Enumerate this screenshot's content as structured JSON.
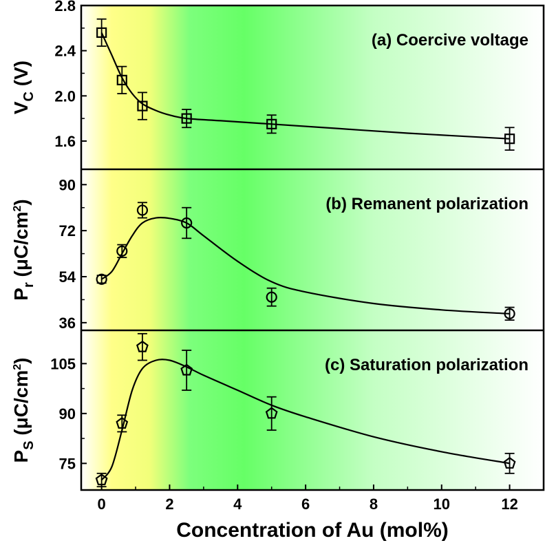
{
  "chart_data": {
    "type": "scatter",
    "x_axis": {
      "label": "Concentration of Au (mol%)",
      "range": [
        -0.6,
        13
      ],
      "ticks": [
        0,
        2,
        4,
        6,
        8,
        10,
        12
      ],
      "tick_labels": [
        "0",
        "2",
        "4",
        "6",
        "8",
        "10",
        "12"
      ]
    },
    "background_gradient": {
      "direction": "horizontal",
      "stops": [
        {
          "x": -0.6,
          "color": "#ffffff"
        },
        {
          "x": 0.3,
          "color": "#ffff88"
        },
        {
          "x": 1.4,
          "color": "#f2ff7a"
        },
        {
          "x": 2.6,
          "color": "#7cff7c"
        },
        {
          "x": 4.2,
          "color": "#66ff66"
        },
        {
          "x": 8.0,
          "color": "#c4ffc4"
        },
        {
          "x": 13.0,
          "color": "#ffffff"
        }
      ]
    },
    "panels": [
      {
        "id": "a",
        "title": "(a) Coercive voltage",
        "ylabel": {
          "main": "V",
          "sub": "C",
          "unit": " (V)"
        },
        "ylim": [
          1.35,
          2.8
        ],
        "yticks": [
          1.6,
          2.0,
          2.4,
          2.8
        ],
        "ytick_labels": [
          "1.6",
          "2.0",
          "2.4",
          "2.8"
        ],
        "marker": "square",
        "points": [
          {
            "x": 0,
            "y": 2.56,
            "err": 0.12
          },
          {
            "x": 0.6,
            "y": 2.14,
            "err": 0.12
          },
          {
            "x": 1.2,
            "y": 1.91,
            "err": 0.12
          },
          {
            "x": 2.5,
            "y": 1.8,
            "err": 0.08
          },
          {
            "x": 5,
            "y": 1.75,
            "err": 0.08
          },
          {
            "x": 12,
            "y": 1.62,
            "err": 0.1
          }
        ],
        "fit_curve": [
          [
            0,
            2.56
          ],
          [
            0.3,
            2.36
          ],
          [
            0.6,
            2.16
          ],
          [
            0.9,
            2.02
          ],
          [
            1.2,
            1.93
          ],
          [
            1.6,
            1.87
          ],
          [
            2.0,
            1.83
          ],
          [
            2.5,
            1.8
          ],
          [
            3.5,
            1.78
          ],
          [
            5,
            1.75
          ],
          [
            7,
            1.71
          ],
          [
            9,
            1.67
          ],
          [
            12,
            1.62
          ]
        ]
      },
      {
        "id": "b",
        "title": "(b) Remanent polarization",
        "ylabel": {
          "main": "P",
          "sub": "r",
          "unit": " (μC/cm",
          "sup": "2",
          "close": ")"
        },
        "ylim": [
          33,
          96
        ],
        "yticks": [
          36,
          54,
          72,
          90
        ],
        "ytick_labels": [
          "36",
          "54",
          "72",
          "90"
        ],
        "marker": "circle",
        "points": [
          {
            "x": 0,
            "y": 53,
            "err": 1.5
          },
          {
            "x": 0.6,
            "y": 64,
            "err": 2.5
          },
          {
            "x": 1.2,
            "y": 80,
            "err": 3.0
          },
          {
            "x": 2.5,
            "y": 75,
            "err": 6.0
          },
          {
            "x": 5,
            "y": 46,
            "err": 3.5
          },
          {
            "x": 12,
            "y": 39.5,
            "err": 2.5
          }
        ],
        "fit_curve": [
          [
            0,
            53
          ],
          [
            0.3,
            56
          ],
          [
            0.6,
            63
          ],
          [
            0.9,
            70
          ],
          [
            1.2,
            75
          ],
          [
            1.6,
            77
          ],
          [
            2.0,
            76.8
          ],
          [
            2.5,
            75
          ],
          [
            3.0,
            70
          ],
          [
            4.0,
            60
          ],
          [
            5,
            52
          ],
          [
            6,
            48
          ],
          [
            8,
            43.5
          ],
          [
            10,
            41
          ],
          [
            12,
            39.5
          ]
        ]
      },
      {
        "id": "c",
        "title": "(c) Saturation polarization",
        "ylabel": {
          "main": "P",
          "sub": "S",
          "unit": " (μC/cm",
          "sup": "2",
          "close": ")"
        },
        "ylim": [
          67,
          115
        ],
        "yticks": [
          75,
          90,
          105
        ],
        "ytick_labels": [
          "75",
          "90",
          "105"
        ],
        "marker": "pentagon",
        "points": [
          {
            "x": 0,
            "y": 70,
            "err": 2.0
          },
          {
            "x": 0.6,
            "y": 87,
            "err": 2.5
          },
          {
            "x": 1.2,
            "y": 110,
            "err": 4.0
          },
          {
            "x": 2.5,
            "y": 103,
            "err": 6.0
          },
          {
            "x": 5,
            "y": 90,
            "err": 5.0
          },
          {
            "x": 12,
            "y": 75,
            "err": 3.0
          }
        ],
        "fit_curve": [
          [
            0,
            70
          ],
          [
            0.3,
            74
          ],
          [
            0.6,
            85
          ],
          [
            0.9,
            97
          ],
          [
            1.2,
            103.5
          ],
          [
            1.6,
            106
          ],
          [
            2.0,
            106
          ],
          [
            2.5,
            104
          ],
          [
            3.0,
            101.5
          ],
          [
            4,
            97
          ],
          [
            5,
            92.5
          ],
          [
            6,
            89
          ],
          [
            8,
            83
          ],
          [
            10,
            78.5
          ],
          [
            12,
            75
          ]
        ]
      }
    ]
  }
}
